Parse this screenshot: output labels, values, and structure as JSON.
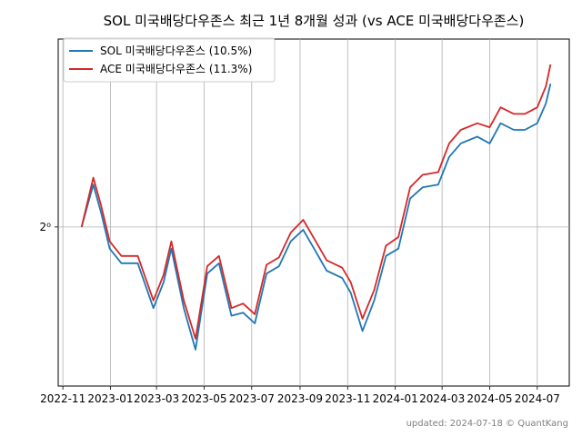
{
  "chart_data": {
    "type": "line",
    "title": "SOL 미국배당다우존스 최근 1년 8개월 성과 (vs ACE 미국배당다우존스)",
    "xlabel": "",
    "ylabel": "",
    "y_scale": "log2",
    "y_tick_labels": [
      "2⁰"
    ],
    "y_ticks": [
      1.0
    ],
    "ylim": [
      0.895,
      1.14
    ],
    "x_tick_labels": [
      "2022-11",
      "2023-01",
      "2023-03",
      "2023-05",
      "2023-07",
      "2023-09",
      "2023-11",
      "2024-01",
      "2024-03",
      "2024-05",
      "2024-07"
    ],
    "x_ticks": [
      "2022-11-01",
      "2023-01-01",
      "2023-03-01",
      "2023-05-01",
      "2023-07-01",
      "2023-09-01",
      "2023-11-01",
      "2024-01-01",
      "2024-03-01",
      "2024-05-01",
      "2024-07-01"
    ],
    "xlim": [
      "2022-10-26",
      "2024-08-11"
    ],
    "grid": true,
    "legend_position": "top-left",
    "x": [
      "2022-11-25",
      "2022-12-10",
      "2022-12-20",
      "2022-12-31",
      "2023-01-15",
      "2023-02-05",
      "2023-02-25",
      "2023-03-10",
      "2023-03-20",
      "2023-04-05",
      "2023-04-20",
      "2023-05-05",
      "2023-05-20",
      "2023-06-05",
      "2023-06-20",
      "2023-07-05",
      "2023-07-20",
      "2023-08-05",
      "2023-08-20",
      "2023-09-05",
      "2023-09-20",
      "2023-10-05",
      "2023-10-25",
      "2023-11-05",
      "2023-11-20",
      "2023-12-05",
      "2023-12-20",
      "2024-01-05",
      "2024-01-20",
      "2024-02-05",
      "2024-02-25",
      "2024-03-10",
      "2024-03-25",
      "2024-04-15",
      "2024-05-01",
      "2024-05-15",
      "2024-06-01",
      "2024-06-15",
      "2024-07-01",
      "2024-07-12",
      "2024-07-18"
    ],
    "series": [
      {
        "name": "SOL 미국배당다우존스 (10.5%)",
        "color": "#1f77b4",
        "values": [
          1.0,
          1.03,
          1.01,
          0.985,
          0.975,
          0.975,
          0.945,
          0.962,
          0.985,
          0.945,
          0.918,
          0.968,
          0.975,
          0.94,
          0.942,
          0.935,
          0.968,
          0.973,
          0.99,
          0.998,
          0.984,
          0.97,
          0.965,
          0.955,
          0.93,
          0.95,
          0.98,
          0.985,
          1.02,
          1.028,
          1.03,
          1.05,
          1.06,
          1.065,
          1.06,
          1.075,
          1.07,
          1.07,
          1.075,
          1.09,
          1.105
        ]
      },
      {
        "name": "ACE 미국배당다우존스 (11.3%)",
        "color": "#d62728",
        "values": [
          1.0,
          1.035,
          1.015,
          0.99,
          0.98,
          0.98,
          0.95,
          0.967,
          0.99,
          0.95,
          0.925,
          0.973,
          0.98,
          0.945,
          0.948,
          0.941,
          0.974,
          0.979,
          0.996,
          1.005,
          0.991,
          0.977,
          0.972,
          0.962,
          0.938,
          0.957,
          0.987,
          0.993,
          1.028,
          1.037,
          1.039,
          1.06,
          1.07,
          1.075,
          1.072,
          1.087,
          1.082,
          1.082,
          1.087,
          1.103,
          1.12
        ]
      }
    ]
  },
  "footer": {
    "updated_label": "updated: 2024-07-18 © QuantKang"
  },
  "colors": {
    "grid": "#b0b0b0",
    "axis": "#000000",
    "legend_border": "#cccccc",
    "footer_text": "#7f7f7f"
  }
}
